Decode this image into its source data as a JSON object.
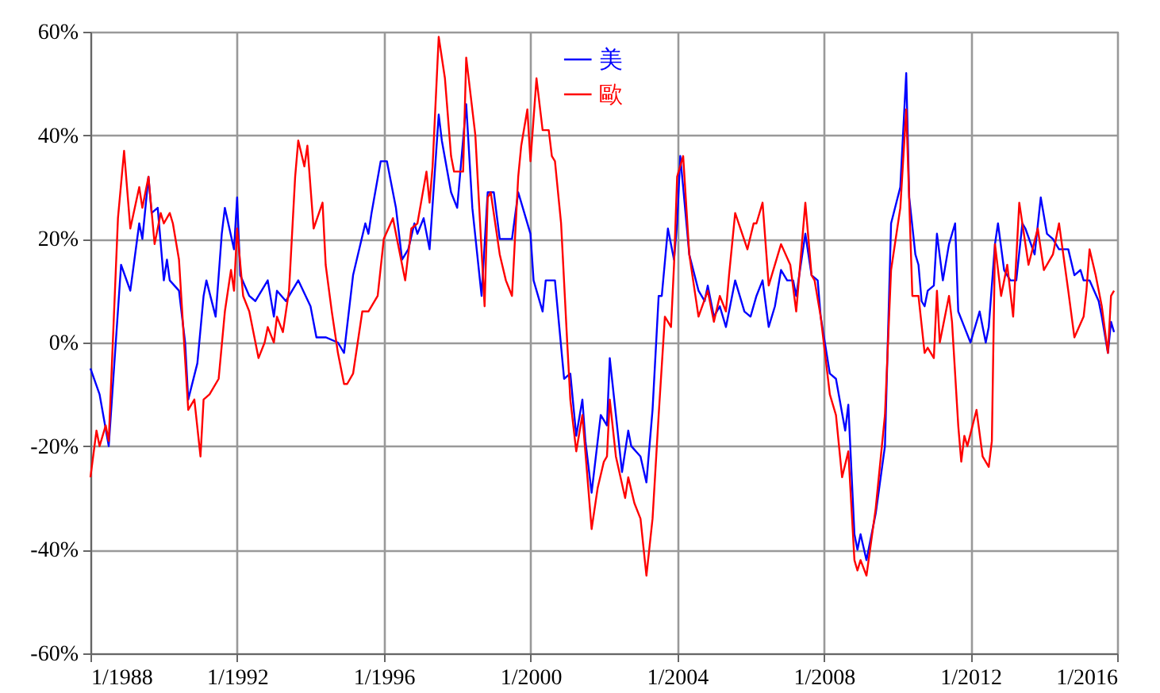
{
  "chart_data": {
    "type": "line",
    "xlim": [
      "1988-01",
      "2016-01"
    ],
    "xticks": [
      {
        "value": "1988-01",
        "label": "1/1988"
      },
      {
        "value": "1992-01",
        "label": "1/1992"
      },
      {
        "value": "1996-01",
        "label": "1/1996"
      },
      {
        "value": "2000-01",
        "label": "1/2000"
      },
      {
        "value": "2004-01",
        "label": "1/2004"
      },
      {
        "value": "2008-01",
        "label": "1/2008"
      },
      {
        "value": "2012-01",
        "label": "1/2012"
      },
      {
        "value": "2016-01",
        "label": "1/2016"
      }
    ],
    "ylim": [
      -60,
      60
    ],
    "yticks": [
      {
        "value": -60,
        "label": "-60%"
      },
      {
        "value": -40,
        "label": "-40%"
      },
      {
        "value": -20,
        "label": "-20%"
      },
      {
        "value": 0,
        "label": "0%"
      },
      {
        "value": 20,
        "label": "20%"
      },
      {
        "value": 40,
        "label": "40%"
      },
      {
        "value": 60,
        "label": "60%"
      }
    ],
    "grid": true,
    "legend": "top",
    "series": [
      {
        "name": "美",
        "color": "#0000ff",
        "x": [
          "1988-01",
          "1988-04",
          "1988-07",
          "1988-11",
          "1989-02",
          "1989-05",
          "1989-06",
          "1989-08",
          "1989-09",
          "1989-11",
          "1990-01",
          "1990-02",
          "1990-03",
          "1990-06",
          "1990-08",
          "1990-09",
          "1990-12",
          "1991-02",
          "1991-03",
          "1991-06",
          "1991-08",
          "1991-09",
          "1991-12",
          "1992-01",
          "1992-02",
          "1992-05",
          "1992-07",
          "1992-11",
          "1993-01",
          "1993-02",
          "1993-05",
          "1993-06",
          "1993-09",
          "1994-01",
          "1994-03",
          "1994-06",
          "1994-10",
          "1994-12",
          "1995-03",
          "1995-07",
          "1995-08",
          "1995-09",
          "1995-12",
          "1996-02",
          "1996-05",
          "1996-07",
          "1996-09",
          "1996-11",
          "1996-12",
          "1997-02",
          "1997-04",
          "1997-07",
          "1997-08",
          "1997-11",
          "1998-01",
          "1998-04",
          "1998-06",
          "1998-09",
          "1998-11",
          "1999-01",
          "1999-03",
          "1999-07",
          "1999-09",
          "2000-01",
          "2000-02",
          "2000-05",
          "2000-06",
          "2000-09",
          "2000-12",
          "2001-02",
          "2001-04",
          "2001-06",
          "2001-07",
          "2001-09",
          "2001-12",
          "2002-02",
          "2002-03",
          "2002-05",
          "2002-07",
          "2002-09",
          "2002-10",
          "2003-01",
          "2003-03",
          "2003-05",
          "2003-07",
          "2003-08",
          "2003-10",
          "2003-12",
          "2004-01",
          "2004-02",
          "2004-03",
          "2004-05",
          "2004-08",
          "2004-10",
          "2004-11",
          "2005-01",
          "2005-03",
          "2005-05",
          "2005-06",
          "2005-08",
          "2005-11",
          "2006-01",
          "2006-03",
          "2006-05",
          "2006-07",
          "2006-09",
          "2006-11",
          "2007-01",
          "2007-03",
          "2007-04",
          "2007-07",
          "2007-09",
          "2007-11",
          "2007-12",
          "2008-03",
          "2008-05",
          "2008-08",
          "2008-09",
          "2008-11",
          "2008-12",
          "2009-01",
          "2009-03",
          "2009-06",
          "2009-09",
          "2009-11",
          "2010-02",
          "2010-04",
          "2010-05",
          "2010-07",
          "2010-08",
          "2010-09",
          "2010-10",
          "2010-11",
          "2011-01",
          "2011-02",
          "2011-04",
          "2011-06",
          "2011-08",
          "2011-09",
          "2011-11",
          "2012-01",
          "2012-04",
          "2012-06",
          "2012-07",
          "2012-09",
          "2012-10",
          "2012-12",
          "2013-02",
          "2013-04",
          "2013-06",
          "2013-07",
          "2013-10",
          "2013-12",
          "2014-02",
          "2014-04",
          "2014-06",
          "2014-09",
          "2014-11",
          "2015-01",
          "2015-02",
          "2015-04",
          "2015-07",
          "2015-08",
          "2015-10",
          "2015-11",
          "2015-12"
        ],
        "values": [
          -5,
          -10,
          -20,
          15,
          10,
          23,
          20,
          32,
          25,
          26,
          12,
          16,
          12,
          10,
          0,
          -11,
          -4,
          9,
          12,
          5,
          21,
          26,
          18,
          28,
          13,
          9,
          8,
          12,
          5,
          10,
          8,
          9,
          12,
          7,
          1,
          1,
          0,
          -2,
          13,
          23,
          21,
          25,
          35,
          35,
          26,
          16,
          18,
          23,
          21,
          24,
          18,
          44,
          39,
          29,
          26,
          46,
          26,
          9,
          29,
          29,
          20,
          20,
          29,
          21,
          12,
          6,
          12,
          12,
          -7,
          -6,
          -18,
          -11,
          -19,
          -29,
          -14,
          -16,
          -3,
          -14,
          -25,
          -17,
          -20,
          -22,
          -27,
          -13,
          9,
          9,
          22,
          16,
          23,
          36,
          30,
          17,
          10,
          8,
          11,
          5,
          7,
          3,
          6,
          12,
          6,
          5,
          9,
          12,
          3,
          7,
          14,
          12,
          12,
          9,
          21,
          13,
          12,
          5,
          -6,
          -7,
          -17,
          -12,
          -37,
          -40,
          -37,
          -42,
          -33,
          -20,
          23,
          30,
          52,
          28,
          17,
          15,
          8,
          7,
          10,
          11,
          21,
          12,
          19,
          23,
          6,
          3,
          0,
          6,
          0,
          3,
          19,
          23,
          14,
          12,
          12,
          23,
          22,
          17,
          28,
          21,
          20,
          18,
          18,
          13,
          14,
          12,
          12,
          8,
          5,
          -2,
          4,
          2
        ]
      },
      {
        "name": "歐",
        "color": "#ff0000",
        "x": [
          "1988-01",
          "1988-03",
          "1988-04",
          "1988-06",
          "1988-07",
          "1988-10",
          "1988-12",
          "1989-02",
          "1989-05",
          "1989-06",
          "1989-08",
          "1989-10",
          "1989-12",
          "1990-01",
          "1990-03",
          "1990-04",
          "1990-06",
          "1990-09",
          "1990-11",
          "1991-01",
          "1991-02",
          "1991-04",
          "1991-07",
          "1991-09",
          "1991-11",
          "1991-12",
          "1992-01",
          "1992-03",
          "1992-05",
          "1992-08",
          "1992-10",
          "1992-11",
          "1993-01",
          "1993-02",
          "1993-04",
          "1993-06",
          "1993-08",
          "1993-09",
          "1993-11",
          "1993-12",
          "1994-02",
          "1994-05",
          "1994-06",
          "1994-08",
          "1994-10",
          "1994-12",
          "1995-01",
          "1995-03",
          "1995-06",
          "1995-08",
          "1995-11",
          "1996-01",
          "1996-04",
          "1996-05",
          "1996-08",
          "1996-10",
          "1996-12",
          "1997-03",
          "1997-04",
          "1997-05",
          "1997-07",
          "1997-09",
          "1997-11",
          "1997-12",
          "1998-03",
          "1998-04",
          "1998-07",
          "1998-10",
          "1998-11",
          "1998-12",
          "1999-03",
          "1999-05",
          "1999-07",
          "1999-09",
          "1999-10",
          "1999-12",
          "2000-01",
          "2000-03",
          "2000-05",
          "2000-07",
          "2000-08",
          "2000-09",
          "2000-11",
          "2001-01",
          "2001-02",
          "2001-04",
          "2001-06",
          "2001-09",
          "2001-11",
          "2002-01",
          "2002-02",
          "2002-03",
          "2002-05",
          "2002-08",
          "2002-09",
          "2002-11",
          "2003-01",
          "2003-03",
          "2003-05",
          "2003-07",
          "2003-09",
          "2003-11",
          "2003-12",
          "2004-01",
          "2004-03",
          "2004-05",
          "2004-08",
          "2004-11",
          "2005-01",
          "2005-03",
          "2005-05",
          "2005-06",
          "2005-08",
          "2005-12",
          "2006-02",
          "2006-03",
          "2006-05",
          "2006-07",
          "2006-11",
          "2007-02",
          "2007-04",
          "2007-07",
          "2007-09",
          "2007-10",
          "2007-12",
          "2008-03",
          "2008-05",
          "2008-07",
          "2008-09",
          "2008-11",
          "2008-12",
          "2009-01",
          "2009-03",
          "2009-06",
          "2009-09",
          "2009-11",
          "2010-02",
          "2010-04",
          "2010-06",
          "2010-08",
          "2010-10",
          "2010-11",
          "2011-01",
          "2011-02",
          "2011-03",
          "2011-06",
          "2011-07",
          "2011-09",
          "2011-10",
          "2011-11",
          "2011-12",
          "2012-03",
          "2012-05",
          "2012-07",
          "2012-08",
          "2012-09",
          "2012-11",
          "2013-01",
          "2013-03",
          "2013-05",
          "2013-08",
          "2013-11",
          "2014-01",
          "2014-04",
          "2014-06",
          "2014-09",
          "2014-11",
          "2015-02",
          "2015-03",
          "2015-04",
          "2015-06",
          "2015-08",
          "2015-10",
          "2015-11",
          "2015-12"
        ],
        "values": [
          -26,
          -17,
          -20,
          -16,
          -19,
          24,
          37,
          22,
          30,
          26,
          32,
          19,
          25,
          23,
          25,
          23,
          16,
          -13,
          -11,
          -22,
          -11,
          -10,
          -7,
          6,
          14,
          10,
          22,
          9,
          6,
          -3,
          0,
          3,
          0,
          5,
          2,
          10,
          32,
          39,
          34,
          38,
          22,
          27,
          15,
          6,
          -2,
          -8,
          -8,
          -6,
          6,
          6,
          9,
          20,
          24,
          21,
          12,
          22,
          23,
          33,
          27,
          34,
          59,
          51,
          36,
          33,
          33,
          55,
          40,
          7,
          28,
          29,
          17,
          12,
          9,
          32,
          38,
          45,
          35,
          51,
          41,
          41,
          36,
          35,
          23,
          0,
          -11,
          -21,
          -14,
          -36,
          -28,
          -23,
          -22,
          -11,
          -22,
          -30,
          -26,
          -31,
          -34,
          -45,
          -34,
          -14,
          5,
          3,
          15,
          32,
          36,
          17,
          5,
          10,
          4,
          9,
          6,
          13,
          25,
          18,
          23,
          23,
          27,
          11,
          19,
          15,
          6,
          27,
          13,
          12,
          5,
          -10,
          -14,
          -26,
          -21,
          -42,
          -44,
          -42,
          -45,
          -32,
          -14,
          14,
          26,
          45,
          9,
          9,
          -2,
          -1,
          -3,
          10,
          0,
          9,
          4,
          -16,
          -23,
          -18,
          -20,
          -13,
          -22,
          -24,
          -19,
          19,
          9,
          15,
          5,
          27,
          15,
          22,
          14,
          17,
          23,
          10,
          1,
          5,
          10,
          18,
          13,
          7,
          -2,
          9,
          10
        ]
      }
    ]
  }
}
